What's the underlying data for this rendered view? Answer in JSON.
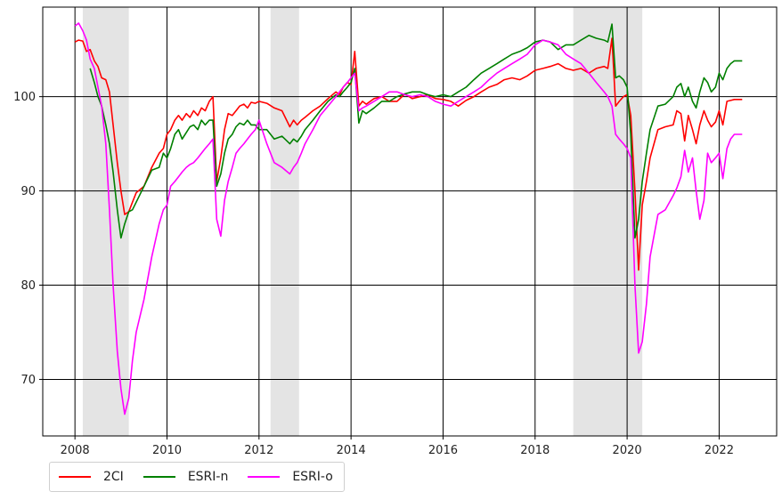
{
  "chart_data": {
    "type": "line",
    "xlim": [
      2007.3,
      2023.25
    ],
    "ylim": [
      64,
      109.5
    ],
    "xticks": [
      2008,
      2010,
      2012,
      2014,
      2016,
      2018,
      2020,
      2022
    ],
    "yticks": [
      70,
      80,
      90,
      100
    ],
    "grid": true,
    "legend_position": "bottom-left",
    "recession_shading": [
      [
        2008.17,
        2009.17
      ],
      [
        2012.25,
        2012.87
      ],
      [
        2018.83,
        2020.33
      ]
    ],
    "shading_color": "#e4e4e4",
    "series": [
      {
        "name": "2CI",
        "color": "#ff0000",
        "x": [
          2008.0,
          2008.08,
          2008.17,
          2008.25,
          2008.33,
          2008.42,
          2008.5,
          2008.58,
          2008.67,
          2008.75,
          2008.83,
          2008.92,
          2009.0,
          2009.08,
          2009.17,
          2009.25,
          2009.33,
          2009.5,
          2009.67,
          2009.83,
          2009.92,
          2010.0,
          2010.08,
          2010.17,
          2010.25,
          2010.33,
          2010.42,
          2010.5,
          2010.58,
          2010.67,
          2010.75,
          2010.83,
          2010.92,
          2011.0,
          2011.08,
          2011.17,
          2011.25,
          2011.33,
          2011.42,
          2011.5,
          2011.58,
          2011.67,
          2011.75,
          2011.83,
          2011.92,
          2012.0,
          2012.17,
          2012.33,
          2012.5,
          2012.67,
          2012.75,
          2012.83,
          2012.92,
          2013.0,
          2013.17,
          2013.33,
          2013.5,
          2013.67,
          2013.75,
          2013.83,
          2013.92,
          2014.0,
          2014.08,
          2014.17,
          2014.25,
          2014.33,
          2014.5,
          2014.67,
          2014.83,
          2015.0,
          2015.17,
          2015.33,
          2015.5,
          2015.67,
          2015.83,
          2016.0,
          2016.17,
          2016.33,
          2016.5,
          2016.67,
          2016.83,
          2017.0,
          2017.17,
          2017.33,
          2017.5,
          2017.67,
          2017.83,
          2018.0,
          2018.17,
          2018.33,
          2018.5,
          2018.67,
          2018.83,
          2019.0,
          2019.17,
          2019.33,
          2019.5,
          2019.58,
          2019.67,
          2019.75,
          2019.83,
          2019.92,
          2020.0,
          2020.08,
          2020.17,
          2020.25,
          2020.33,
          2020.42,
          2020.5,
          2020.67,
          2020.83,
          2021.0,
          2021.08,
          2021.17,
          2021.25,
          2021.33,
          2021.42,
          2021.5,
          2021.58,
          2021.67,
          2021.75,
          2021.83,
          2021.92,
          2022.0,
          2022.08,
          2022.17,
          2022.25,
          2022.33,
          2022.42,
          2022.5
        ],
        "y": [
          105.8,
          106.0,
          105.9,
          104.8,
          105.0,
          103.8,
          103.2,
          102.0,
          101.8,
          100.5,
          97.0,
          93.0,
          90.0,
          87.5,
          87.8,
          88.8,
          89.8,
          90.5,
          92.5,
          94.0,
          94.5,
          96.0,
          96.5,
          97.5,
          98.0,
          97.5,
          98.2,
          97.8,
          98.5,
          98.0,
          98.8,
          98.5,
          99.5,
          100.0,
          91.0,
          93.5,
          96.5,
          98.2,
          98.0,
          98.5,
          99.0,
          99.2,
          98.8,
          99.4,
          99.3,
          99.5,
          99.3,
          98.8,
          98.5,
          96.8,
          97.5,
          97.0,
          97.5,
          97.8,
          98.5,
          99.0,
          99.8,
          100.5,
          100.2,
          101.0,
          101.5,
          101.3,
          104.8,
          99.0,
          99.5,
          99.2,
          99.8,
          100.0,
          99.5,
          99.5,
          100.3,
          99.8,
          100.0,
          100.2,
          99.8,
          99.7,
          99.5,
          99.0,
          99.6,
          100.0,
          100.5,
          101.0,
          101.3,
          101.8,
          102.0,
          101.8,
          102.2,
          102.8,
          103.0,
          103.2,
          103.5,
          103.0,
          102.8,
          103.0,
          102.5,
          103.0,
          103.2,
          103.0,
          106.2,
          99.0,
          99.5,
          100.0,
          100.2,
          98.0,
          90.0,
          81.6,
          88.5,
          91.0,
          93.5,
          96.5,
          96.8,
          97.0,
          98.5,
          98.2,
          95.3,
          98.0,
          96.5,
          95.0,
          97.0,
          98.5,
          97.5,
          96.8,
          97.3,
          98.5,
          97.0,
          99.5,
          99.6,
          99.7,
          99.7,
          99.7
        ],
        "y_start_index": 0
      },
      {
        "name": "ESRI-n",
        "color": "#008000",
        "x": [
          2008.33,
          2008.42,
          2008.5,
          2008.58,
          2008.67,
          2008.75,
          2008.83,
          2008.92,
          2009.0,
          2009.08,
          2009.17,
          2009.25,
          2009.33,
          2009.5,
          2009.67,
          2009.83,
          2009.92,
          2010.0,
          2010.08,
          2010.17,
          2010.25,
          2010.33,
          2010.42,
          2010.5,
          2010.58,
          2010.67,
          2010.75,
          2010.83,
          2010.92,
          2011.0,
          2011.08,
          2011.17,
          2011.25,
          2011.33,
          2011.42,
          2011.5,
          2011.58,
          2011.67,
          2011.75,
          2011.83,
          2011.92,
          2012.0,
          2012.17,
          2012.33,
          2012.5,
          2012.67,
          2012.75,
          2012.83,
          2012.92,
          2013.0,
          2013.17,
          2013.33,
          2013.5,
          2013.67,
          2013.75,
          2013.83,
          2013.92,
          2014.0,
          2014.08,
          2014.17,
          2014.25,
          2014.33,
          2014.5,
          2014.67,
          2014.83,
          2015.0,
          2015.17,
          2015.33,
          2015.5,
          2015.67,
          2015.83,
          2016.0,
          2016.17,
          2016.33,
          2016.5,
          2016.67,
          2016.83,
          2017.0,
          2017.17,
          2017.33,
          2017.5,
          2017.67,
          2017.83,
          2018.0,
          2018.17,
          2018.33,
          2018.5,
          2018.67,
          2018.83,
          2019.0,
          2019.17,
          2019.33,
          2019.5,
          2019.58,
          2019.67,
          2019.75,
          2019.83,
          2019.92,
          2020.0,
          2020.08,
          2020.17,
          2020.25,
          2020.33,
          2020.42,
          2020.5,
          2020.67,
          2020.83,
          2021.0,
          2021.08,
          2021.17,
          2021.25,
          2021.33,
          2021.42,
          2021.5,
          2021.58,
          2021.67,
          2021.75,
          2021.83,
          2021.92,
          2022.0,
          2022.08,
          2022.17,
          2022.25,
          2022.33,
          2022.42,
          2022.5
        ],
        "y": [
          103.0,
          101.5,
          100.0,
          99.0,
          97.0,
          95.0,
          92.0,
          88.0,
          85.0,
          86.5,
          87.8,
          88.0,
          88.8,
          90.5,
          92.2,
          92.5,
          94.0,
          93.5,
          94.5,
          96.0,
          96.5,
          95.5,
          96.2,
          96.8,
          97.0,
          96.5,
          97.5,
          97.0,
          97.5,
          97.5,
          90.5,
          91.8,
          94.0,
          95.5,
          96.0,
          96.8,
          97.2,
          97.0,
          97.5,
          97.0,
          97.0,
          96.5,
          96.5,
          95.5,
          95.8,
          95.0,
          95.5,
          95.2,
          95.8,
          96.5,
          97.5,
          98.5,
          99.5,
          100.2,
          100.0,
          100.5,
          101.0,
          101.5,
          103.0,
          97.2,
          98.5,
          98.2,
          98.8,
          99.5,
          99.5,
          100.0,
          100.3,
          100.5,
          100.5,
          100.2,
          100.0,
          100.2,
          100.0,
          100.5,
          101.0,
          101.8,
          102.5,
          103.0,
          103.5,
          104.0,
          104.5,
          104.8,
          105.2,
          105.8,
          106.0,
          105.8,
          105.0,
          105.5,
          105.5,
          106.0,
          106.5,
          106.2,
          106.0,
          105.8,
          107.7,
          102.0,
          102.2,
          101.8,
          101.0,
          96.0,
          85.0,
          87.0,
          91.0,
          94.0,
          96.5,
          99.0,
          99.2,
          100.0,
          101.0,
          101.4,
          100.0,
          101.0,
          99.5,
          98.8,
          100.5,
          102.0,
          101.5,
          100.5,
          101.0,
          102.5,
          101.8,
          103.0,
          103.5,
          103.8,
          103.8,
          103.8
        ],
        "y_start_index": 0
      },
      {
        "name": "ESRI-o",
        "color": "#ff00ff",
        "x": [
          2008.0,
          2008.08,
          2008.17,
          2008.25,
          2008.33,
          2008.42,
          2008.5,
          2008.58,
          2008.67,
          2008.75,
          2008.83,
          2008.92,
          2009.0,
          2009.08,
          2009.17,
          2009.25,
          2009.33,
          2009.5,
          2009.67,
          2009.83,
          2009.92,
          2010.0,
          2010.08,
          2010.17,
          2010.25,
          2010.33,
          2010.42,
          2010.5,
          2010.58,
          2010.67,
          2010.75,
          2010.83,
          2010.92,
          2011.0,
          2011.08,
          2011.17,
          2011.25,
          2011.33,
          2011.42,
          2011.5,
          2011.58,
          2011.67,
          2011.75,
          2011.83,
          2011.92,
          2012.0,
          2012.17,
          2012.33,
          2012.5,
          2012.67,
          2012.75,
          2012.83,
          2012.92,
          2013.0,
          2013.17,
          2013.33,
          2013.5,
          2013.67,
          2013.75,
          2013.83,
          2013.92,
          2014.0,
          2014.08,
          2014.17,
          2014.25,
          2014.33,
          2014.5,
          2014.67,
          2014.83,
          2015.0,
          2015.17,
          2015.33,
          2015.5,
          2015.67,
          2015.83,
          2016.0,
          2016.17,
          2016.33,
          2016.5,
          2016.67,
          2016.83,
          2017.0,
          2017.17,
          2017.33,
          2017.5,
          2017.67,
          2017.83,
          2018.0,
          2018.17,
          2018.33,
          2018.5,
          2018.67,
          2018.83,
          2019.0,
          2019.17,
          2019.33,
          2019.5,
          2019.58,
          2019.67,
          2019.75,
          2019.83,
          2019.92,
          2020.0,
          2020.08,
          2020.17,
          2020.25,
          2020.33,
          2020.42,
          2020.5,
          2020.67,
          2020.83,
          2021.0,
          2021.08,
          2021.17,
          2021.25,
          2021.33,
          2021.42,
          2021.5,
          2021.58,
          2021.67,
          2021.75,
          2021.83,
          2021.92,
          2022.0,
          2022.08,
          2022.17,
          2022.25,
          2022.33,
          2022.42,
          2022.5
        ],
        "y": [
          107.5,
          107.8,
          107.0,
          106.0,
          104.0,
          103.0,
          101.0,
          99.0,
          95.0,
          88.0,
          80.0,
          73.0,
          69.0,
          66.3,
          68.0,
          72.0,
          75.0,
          78.5,
          83.0,
          86.5,
          88.0,
          88.5,
          90.5,
          91.0,
          91.5,
          92.0,
          92.5,
          92.8,
          93.0,
          93.5,
          94.0,
          94.5,
          95.0,
          95.5,
          87.0,
          85.2,
          89.0,
          91.0,
          92.5,
          94.0,
          94.5,
          95.0,
          95.5,
          96.0,
          96.5,
          97.5,
          95.0,
          93.0,
          92.5,
          91.8,
          92.5,
          93.0,
          94.0,
          95.0,
          96.5,
          98.0,
          99.0,
          100.0,
          100.5,
          101.0,
          101.5,
          102.0,
          102.5,
          98.5,
          98.8,
          99.0,
          99.5,
          100.0,
          100.5,
          100.5,
          100.2,
          100.0,
          100.2,
          100.0,
          99.5,
          99.2,
          99.0,
          99.5,
          100.0,
          100.5,
          101.0,
          101.8,
          102.5,
          103.0,
          103.5,
          104.0,
          104.5,
          105.5,
          106.0,
          105.8,
          105.5,
          104.5,
          104.0,
          103.5,
          102.5,
          101.5,
          100.5,
          100.0,
          99.0,
          96.0,
          95.5,
          95.0,
          94.5,
          93.5,
          80.0,
          72.8,
          74.0,
          78.0,
          83.0,
          87.5,
          88.0,
          89.5,
          90.3,
          91.5,
          94.3,
          92.0,
          93.5,
          90.0,
          87.0,
          89.0,
          94.0,
          93.0,
          93.5,
          94.0,
          91.3,
          94.5,
          95.5,
          96.0,
          96.0,
          96.0
        ],
        "y_start_index": 0
      }
    ]
  }
}
